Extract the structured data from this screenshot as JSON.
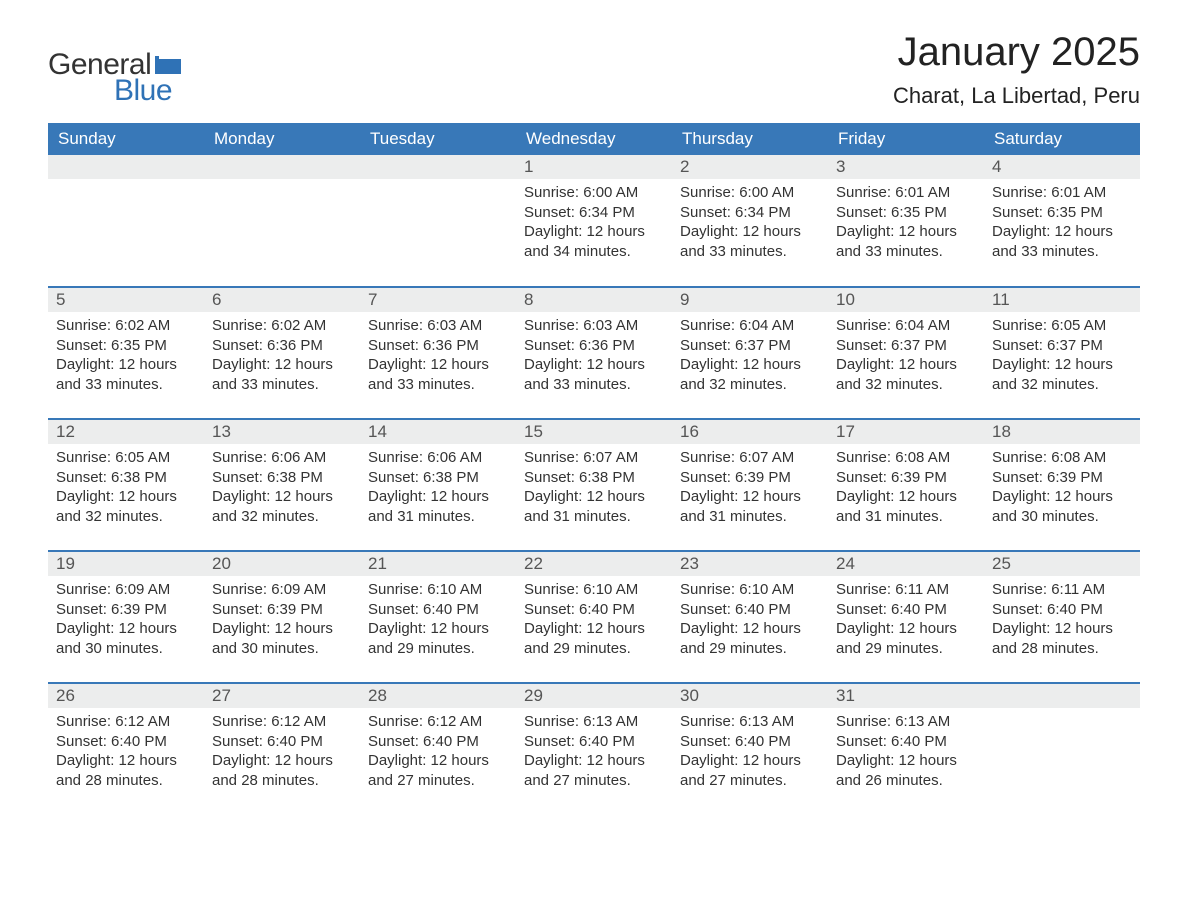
{
  "logo": {
    "text_general": "General",
    "text_blue": "Blue"
  },
  "title": "January 2025",
  "location": "Charat, La Libertad, Peru",
  "header_bg": "#3878b8",
  "header_fg": "#ffffff",
  "daynum_bg": "#eceded",
  "row_divider": "#3878b8",
  "body_bg": "#ffffff",
  "text_color": "#333333",
  "logo_blue_color": "#2f72b6",
  "day_names": [
    "Sunday",
    "Monday",
    "Tuesday",
    "Wednesday",
    "Thursday",
    "Friday",
    "Saturday"
  ],
  "weeks": [
    [
      null,
      null,
      null,
      {
        "n": "1",
        "sr": "Sunrise: 6:00 AM",
        "ss": "Sunset: 6:34 PM",
        "d1": "Daylight: 12 hours",
        "d2": "and 34 minutes."
      },
      {
        "n": "2",
        "sr": "Sunrise: 6:00 AM",
        "ss": "Sunset: 6:34 PM",
        "d1": "Daylight: 12 hours",
        "d2": "and 33 minutes."
      },
      {
        "n": "3",
        "sr": "Sunrise: 6:01 AM",
        "ss": "Sunset: 6:35 PM",
        "d1": "Daylight: 12 hours",
        "d2": "and 33 minutes."
      },
      {
        "n": "4",
        "sr": "Sunrise: 6:01 AM",
        "ss": "Sunset: 6:35 PM",
        "d1": "Daylight: 12 hours",
        "d2": "and 33 minutes."
      }
    ],
    [
      {
        "n": "5",
        "sr": "Sunrise: 6:02 AM",
        "ss": "Sunset: 6:35 PM",
        "d1": "Daylight: 12 hours",
        "d2": "and 33 minutes."
      },
      {
        "n": "6",
        "sr": "Sunrise: 6:02 AM",
        "ss": "Sunset: 6:36 PM",
        "d1": "Daylight: 12 hours",
        "d2": "and 33 minutes."
      },
      {
        "n": "7",
        "sr": "Sunrise: 6:03 AM",
        "ss": "Sunset: 6:36 PM",
        "d1": "Daylight: 12 hours",
        "d2": "and 33 minutes."
      },
      {
        "n": "8",
        "sr": "Sunrise: 6:03 AM",
        "ss": "Sunset: 6:36 PM",
        "d1": "Daylight: 12 hours",
        "d2": "and 33 minutes."
      },
      {
        "n": "9",
        "sr": "Sunrise: 6:04 AM",
        "ss": "Sunset: 6:37 PM",
        "d1": "Daylight: 12 hours",
        "d2": "and 32 minutes."
      },
      {
        "n": "10",
        "sr": "Sunrise: 6:04 AM",
        "ss": "Sunset: 6:37 PM",
        "d1": "Daylight: 12 hours",
        "d2": "and 32 minutes."
      },
      {
        "n": "11",
        "sr": "Sunrise: 6:05 AM",
        "ss": "Sunset: 6:37 PM",
        "d1": "Daylight: 12 hours",
        "d2": "and 32 minutes."
      }
    ],
    [
      {
        "n": "12",
        "sr": "Sunrise: 6:05 AM",
        "ss": "Sunset: 6:38 PM",
        "d1": "Daylight: 12 hours",
        "d2": "and 32 minutes."
      },
      {
        "n": "13",
        "sr": "Sunrise: 6:06 AM",
        "ss": "Sunset: 6:38 PM",
        "d1": "Daylight: 12 hours",
        "d2": "and 32 minutes."
      },
      {
        "n": "14",
        "sr": "Sunrise: 6:06 AM",
        "ss": "Sunset: 6:38 PM",
        "d1": "Daylight: 12 hours",
        "d2": "and 31 minutes."
      },
      {
        "n": "15",
        "sr": "Sunrise: 6:07 AM",
        "ss": "Sunset: 6:38 PM",
        "d1": "Daylight: 12 hours",
        "d2": "and 31 minutes."
      },
      {
        "n": "16",
        "sr": "Sunrise: 6:07 AM",
        "ss": "Sunset: 6:39 PM",
        "d1": "Daylight: 12 hours",
        "d2": "and 31 minutes."
      },
      {
        "n": "17",
        "sr": "Sunrise: 6:08 AM",
        "ss": "Sunset: 6:39 PM",
        "d1": "Daylight: 12 hours",
        "d2": "and 31 minutes."
      },
      {
        "n": "18",
        "sr": "Sunrise: 6:08 AM",
        "ss": "Sunset: 6:39 PM",
        "d1": "Daylight: 12 hours",
        "d2": "and 30 minutes."
      }
    ],
    [
      {
        "n": "19",
        "sr": "Sunrise: 6:09 AM",
        "ss": "Sunset: 6:39 PM",
        "d1": "Daylight: 12 hours",
        "d2": "and 30 minutes."
      },
      {
        "n": "20",
        "sr": "Sunrise: 6:09 AM",
        "ss": "Sunset: 6:39 PM",
        "d1": "Daylight: 12 hours",
        "d2": "and 30 minutes."
      },
      {
        "n": "21",
        "sr": "Sunrise: 6:10 AM",
        "ss": "Sunset: 6:40 PM",
        "d1": "Daylight: 12 hours",
        "d2": "and 29 minutes."
      },
      {
        "n": "22",
        "sr": "Sunrise: 6:10 AM",
        "ss": "Sunset: 6:40 PM",
        "d1": "Daylight: 12 hours",
        "d2": "and 29 minutes."
      },
      {
        "n": "23",
        "sr": "Sunrise: 6:10 AM",
        "ss": "Sunset: 6:40 PM",
        "d1": "Daylight: 12 hours",
        "d2": "and 29 minutes."
      },
      {
        "n": "24",
        "sr": "Sunrise: 6:11 AM",
        "ss": "Sunset: 6:40 PM",
        "d1": "Daylight: 12 hours",
        "d2": "and 29 minutes."
      },
      {
        "n": "25",
        "sr": "Sunrise: 6:11 AM",
        "ss": "Sunset: 6:40 PM",
        "d1": "Daylight: 12 hours",
        "d2": "and 28 minutes."
      }
    ],
    [
      {
        "n": "26",
        "sr": "Sunrise: 6:12 AM",
        "ss": "Sunset: 6:40 PM",
        "d1": "Daylight: 12 hours",
        "d2": "and 28 minutes."
      },
      {
        "n": "27",
        "sr": "Sunrise: 6:12 AM",
        "ss": "Sunset: 6:40 PM",
        "d1": "Daylight: 12 hours",
        "d2": "and 28 minutes."
      },
      {
        "n": "28",
        "sr": "Sunrise: 6:12 AM",
        "ss": "Sunset: 6:40 PM",
        "d1": "Daylight: 12 hours",
        "d2": "and 27 minutes."
      },
      {
        "n": "29",
        "sr": "Sunrise: 6:13 AM",
        "ss": "Sunset: 6:40 PM",
        "d1": "Daylight: 12 hours",
        "d2": "and 27 minutes."
      },
      {
        "n": "30",
        "sr": "Sunrise: 6:13 AM",
        "ss": "Sunset: 6:40 PM",
        "d1": "Daylight: 12 hours",
        "d2": "and 27 minutes."
      },
      {
        "n": "31",
        "sr": "Sunrise: 6:13 AM",
        "ss": "Sunset: 6:40 PM",
        "d1": "Daylight: 12 hours",
        "d2": "and 26 minutes."
      },
      null
    ]
  ]
}
